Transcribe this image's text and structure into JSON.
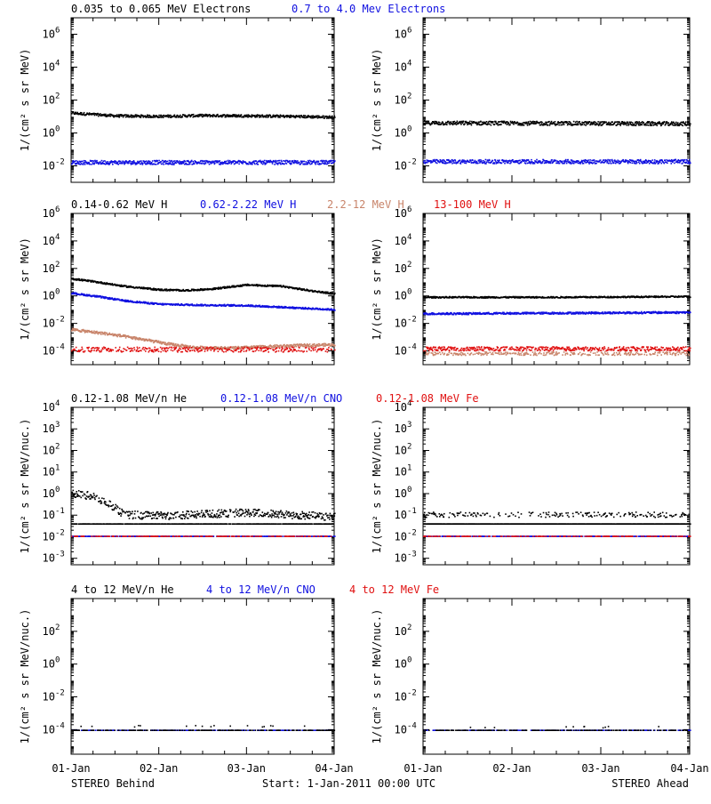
{
  "footer": {
    "left": "STEREO Behind",
    "center": "Start:  1-Jan-2011 00:00 UTC",
    "right": "STEREO Ahead"
  },
  "x_ticks": [
    "01-Jan",
    "02-Jan",
    "03-Jan",
    "04-Jan"
  ],
  "colors": {
    "black": "#000000",
    "blue": "#1010e0",
    "tan": "#c8846a",
    "red": "#e01010"
  },
  "chart_data": [
    {
      "type": "scatter",
      "row": 1,
      "ylabel": "1/(cm² s sr MeV)",
      "y_scale": "log",
      "ylim_exp": [
        -3,
        7
      ],
      "yticks": [
        {
          "base": "10",
          "exp": "-2"
        },
        {
          "base": "10",
          "exp": "0"
        },
        {
          "base": "10",
          "exp": "2"
        },
        {
          "base": "10",
          "exp": "4"
        },
        {
          "base": "10",
          "exp": "6"
        }
      ],
      "legend": [
        {
          "text": "0.035 to 0.065 MeV Electrons",
          "color": "black"
        },
        {
          "text": "0.7 to 4.0 Mev Electrons",
          "color": "blue"
        }
      ],
      "behind": [
        {
          "name": "0.035 to 0.065 MeV Electrons",
          "color": "black",
          "days": [
            0,
            0.5,
            1,
            1.5,
            2,
            2.5,
            3
          ],
          "log10": [
            1.25,
            1.08,
            1.05,
            1.1,
            1.08,
            1.05,
            1.0
          ],
          "spread": 0.08,
          "density": 1.0
        },
        {
          "name": "0.7 to 4.0 Mev Electrons",
          "color": "blue",
          "days": [
            0,
            3
          ],
          "log10": [
            -1.75,
            -1.75
          ],
          "spread": 0.12,
          "density": 1.0
        }
      ],
      "ahead": [
        {
          "name": "0.035 to 0.065 MeV Electrons",
          "color": "black",
          "days": [
            0,
            3
          ],
          "log10": [
            0.65,
            0.6
          ],
          "spread": 0.12,
          "density": 1.0
        },
        {
          "name": "0.7 to 4.0 Mev Electrons",
          "color": "blue",
          "days": [
            0,
            3
          ],
          "log10": [
            -1.7,
            -1.7
          ],
          "spread": 0.12,
          "density": 1.0
        }
      ]
    },
    {
      "type": "scatter",
      "row": 2,
      "ylabel": "1/(cm² s sr MeV)",
      "y_scale": "log",
      "ylim_exp": [
        -5,
        6
      ],
      "yticks": [
        {
          "base": "10",
          "exp": "-4"
        },
        {
          "base": "10",
          "exp": "-2"
        },
        {
          "base": "10",
          "exp": "0"
        },
        {
          "base": "10",
          "exp": "2"
        },
        {
          "base": "10",
          "exp": "4"
        },
        {
          "base": "10",
          "exp": "6"
        }
      ],
      "legend": [
        {
          "text": "0.14-0.62 MeV H",
          "color": "black"
        },
        {
          "text": "0.62-2.22 MeV H",
          "color": "blue"
        },
        {
          "text": "2.2-12 MeV H",
          "color": "tan"
        },
        {
          "text": "13-100 MeV H",
          "color": "red"
        }
      ],
      "behind": [
        {
          "name": "0.14-0.62 MeV H",
          "color": "black",
          "days": [
            0,
            0.3,
            0.6,
            1.0,
            1.3,
            1.6,
            2.0,
            2.4,
            2.7,
            3.0
          ],
          "log10": [
            1.3,
            1.05,
            0.75,
            0.5,
            0.45,
            0.55,
            0.85,
            0.75,
            0.45,
            0.2
          ],
          "spread": 0.06,
          "density": 1.0
        },
        {
          "name": "0.62-2.22 MeV H",
          "color": "blue",
          "days": [
            0,
            0.3,
            0.6,
            1.0,
            1.5,
            2.0,
            2.5,
            3.0
          ],
          "log10": [
            0.25,
            0.0,
            -0.3,
            -0.55,
            -0.62,
            -0.65,
            -0.8,
            -0.95
          ],
          "spread": 0.06,
          "density": 1.0
        },
        {
          "name": "2.2-12 MeV H",
          "color": "tan",
          "days": [
            0,
            0.4,
            0.8,
            1.1,
            1.4,
            1.8,
            2.2,
            2.6,
            3.0
          ],
          "log10": [
            -2.4,
            -2.7,
            -3.1,
            -3.45,
            -3.7,
            -3.75,
            -3.65,
            -3.55,
            -3.5
          ],
          "spread": 0.1,
          "density": 1.0
        },
        {
          "name": "13-100 MeV H",
          "color": "red",
          "days": [
            0,
            3
          ],
          "log10": [
            -3.85,
            -3.85
          ],
          "spread": 0.18,
          "density": 0.6
        }
      ],
      "ahead": [
        {
          "name": "0.14-0.62 MeV H",
          "color": "black",
          "days": [
            0,
            1.5,
            3
          ],
          "log10": [
            -0.05,
            -0.05,
            0.0
          ],
          "spread": 0.05,
          "density": 1.0
        },
        {
          "name": "0.62-2.22 MeV H",
          "color": "blue",
          "days": [
            0,
            1.5,
            3
          ],
          "log10": [
            -1.25,
            -1.2,
            -1.15
          ],
          "spread": 0.07,
          "density": 1.0
        },
        {
          "name": "2.2-12 MeV H",
          "color": "tan",
          "days": [
            0,
            3
          ],
          "log10": [
            -4.15,
            -4.15
          ],
          "spread": 0.12,
          "density": 0.5
        },
        {
          "name": "13-100 MeV H",
          "color": "red",
          "days": [
            0,
            3
          ],
          "log10": [
            -3.8,
            -3.8
          ],
          "spread": 0.15,
          "density": 0.8
        }
      ]
    },
    {
      "type": "scatter",
      "row": 3,
      "ylabel": "1/(cm² s sr MeV/nuc.)",
      "y_scale": "log",
      "ylim_exp": [
        -3.3,
        4
      ],
      "yticks": [
        {
          "base": "10",
          "exp": "-3"
        },
        {
          "base": "10",
          "exp": "-2"
        },
        {
          "base": "10",
          "exp": "-1"
        },
        {
          "base": "10",
          "exp": "0"
        },
        {
          "base": "10",
          "exp": "1"
        },
        {
          "base": "10",
          "exp": "2"
        },
        {
          "base": "10",
          "exp": "3"
        },
        {
          "base": "10",
          "exp": "4"
        }
      ],
      "legend": [
        {
          "text": "0.12-1.08 MeV/n He",
          "color": "black"
        },
        {
          "text": "0.12-1.08 MeV/n CNO",
          "color": "blue"
        },
        {
          "text": "0.12-1.08 MeV Fe",
          "color": "red"
        }
      ],
      "behind": [
        {
          "name": "0.12-1.08 MeV/n He",
          "color": "black",
          "days": [
            0,
            0.25,
            0.45,
            0.6,
            1.0,
            2.0,
            3.0
          ],
          "log10": [
            0.05,
            -0.1,
            -0.5,
            -0.95,
            -1.0,
            -0.85,
            -1.05
          ],
          "spread": 0.18,
          "density": 0.8
        },
        {
          "name": "0.12-1.08 MeV/n He",
          "color": "black",
          "days": [
            0.6,
            3.0
          ],
          "log10": [
            -1.38,
            -1.38
          ],
          "spread": 0.0,
          "density": 0.7
        },
        {
          "name": "0.12-1.08 MeV/n CNO",
          "color": "blue",
          "days": [
            0,
            3
          ],
          "log10": [
            -1.95,
            -1.95
          ],
          "spread": 0.0,
          "density": 0.6
        },
        {
          "name": "0.12-1.08 MeV Fe",
          "color": "red",
          "days": [
            0,
            3
          ],
          "log10": [
            -1.95,
            -1.95
          ],
          "spread": 0.0,
          "density": 0.3
        }
      ],
      "ahead": [
        {
          "name": "0.12-1.08 MeV/n He",
          "color": "black",
          "days": [
            0,
            3
          ],
          "log10": [
            -0.95,
            -0.95
          ],
          "spread": 0.12,
          "density": 0.35
        },
        {
          "name": "0.12-1.08 MeV/n He",
          "color": "black",
          "days": [
            0,
            3
          ],
          "log10": [
            -1.38,
            -1.38
          ],
          "spread": 0.0,
          "density": 0.95
        },
        {
          "name": "0.12-1.08 MeV/n CNO",
          "color": "blue",
          "days": [
            0,
            3
          ],
          "log10": [
            -1.95,
            -1.95
          ],
          "spread": 0.0,
          "density": 0.6
        },
        {
          "name": "0.12-1.08 MeV Fe",
          "color": "red",
          "days": [
            0,
            3
          ],
          "log10": [
            -1.95,
            -1.95
          ],
          "spread": 0.0,
          "density": 0.3
        }
      ]
    },
    {
      "type": "scatter",
      "row": 4,
      "ylabel": "1/(cm² s sr MeV/nuc.)",
      "y_scale": "log",
      "ylim_exp": [
        -5.5,
        4
      ],
      "yticks": [
        {
          "base": "10",
          "exp": "-4"
        },
        {
          "base": "10",
          "exp": "-2"
        },
        {
          "base": "10",
          "exp": "0"
        },
        {
          "base": "10",
          "exp": "2"
        }
      ],
      "legend": [
        {
          "text": "4 to 12 MeV/n He",
          "color": "black"
        },
        {
          "text": "4 to 12 MeV/n CNO",
          "color": "blue"
        },
        {
          "text": "4 to 12 MeV Fe",
          "color": "red"
        }
      ],
      "behind": [
        {
          "name": "4 to 12 MeV/n CNO",
          "color": "blue",
          "days": [
            0,
            3
          ],
          "log10": [
            -4.0,
            -4.0
          ],
          "spread": 0.0,
          "density": 0.35
        },
        {
          "name": "4 to 12 MeV/n He",
          "color": "black",
          "days": [
            0,
            3
          ],
          "log10": [
            -4.0,
            -4.0
          ],
          "spread": 0.0,
          "density": 0.35
        },
        {
          "name": "4 to 12 MeV/n He",
          "color": "black",
          "days": [
            0,
            3
          ],
          "log10": [
            -3.75,
            -3.75
          ],
          "spread": 0.05,
          "density": 0.02
        }
      ],
      "ahead": [
        {
          "name": "4 to 12 MeV/n CNO",
          "color": "blue",
          "days": [
            0,
            3
          ],
          "log10": [
            -4.0,
            -4.0
          ],
          "spread": 0.0,
          "density": 0.35
        },
        {
          "name": "4 to 12 MeV/n He",
          "color": "black",
          "days": [
            0,
            3
          ],
          "log10": [
            -4.0,
            -4.0
          ],
          "spread": 0.0,
          "density": 0.3
        },
        {
          "name": "4 to 12 MeV/n He",
          "color": "black",
          "days": [
            0,
            3
          ],
          "log10": [
            -3.8,
            -3.8
          ],
          "spread": 0.05,
          "density": 0.02
        }
      ]
    }
  ]
}
